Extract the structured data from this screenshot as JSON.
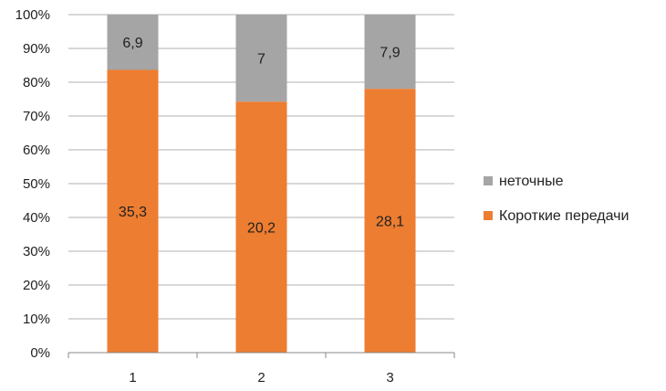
{
  "chart_data": {
    "type": "bar",
    "stacked": true,
    "normalized": true,
    "categories": [
      "1",
      "2",
      "3"
    ],
    "series": [
      {
        "name": "Короткие передачи",
        "values": [
          35.3,
          20.2,
          28.1
        ],
        "labels": [
          "35,3",
          "20,2",
          "28,1"
        ],
        "color": "#ED7D31"
      },
      {
        "name": "неточные",
        "values": [
          6.9,
          7,
          7.9
        ],
        "labels": [
          "6,9",
          "7",
          "7,9"
        ],
        "color": "#A5A5A5"
      }
    ],
    "y_ticks": [
      "0%",
      "10%",
      "20%",
      "30%",
      "40%",
      "50%",
      "60%",
      "70%",
      "80%",
      "90%",
      "100%"
    ],
    "ylim": [
      0,
      100
    ],
    "y_unit": "percent",
    "title": "",
    "xlabel": "",
    "ylabel": "",
    "grid": true,
    "legend_position": "right",
    "legend_order": [
      "неточные",
      "Короткие передачи"
    ],
    "colors": {
      "grid": "#B0B0B0",
      "axis": "#888888"
    }
  }
}
